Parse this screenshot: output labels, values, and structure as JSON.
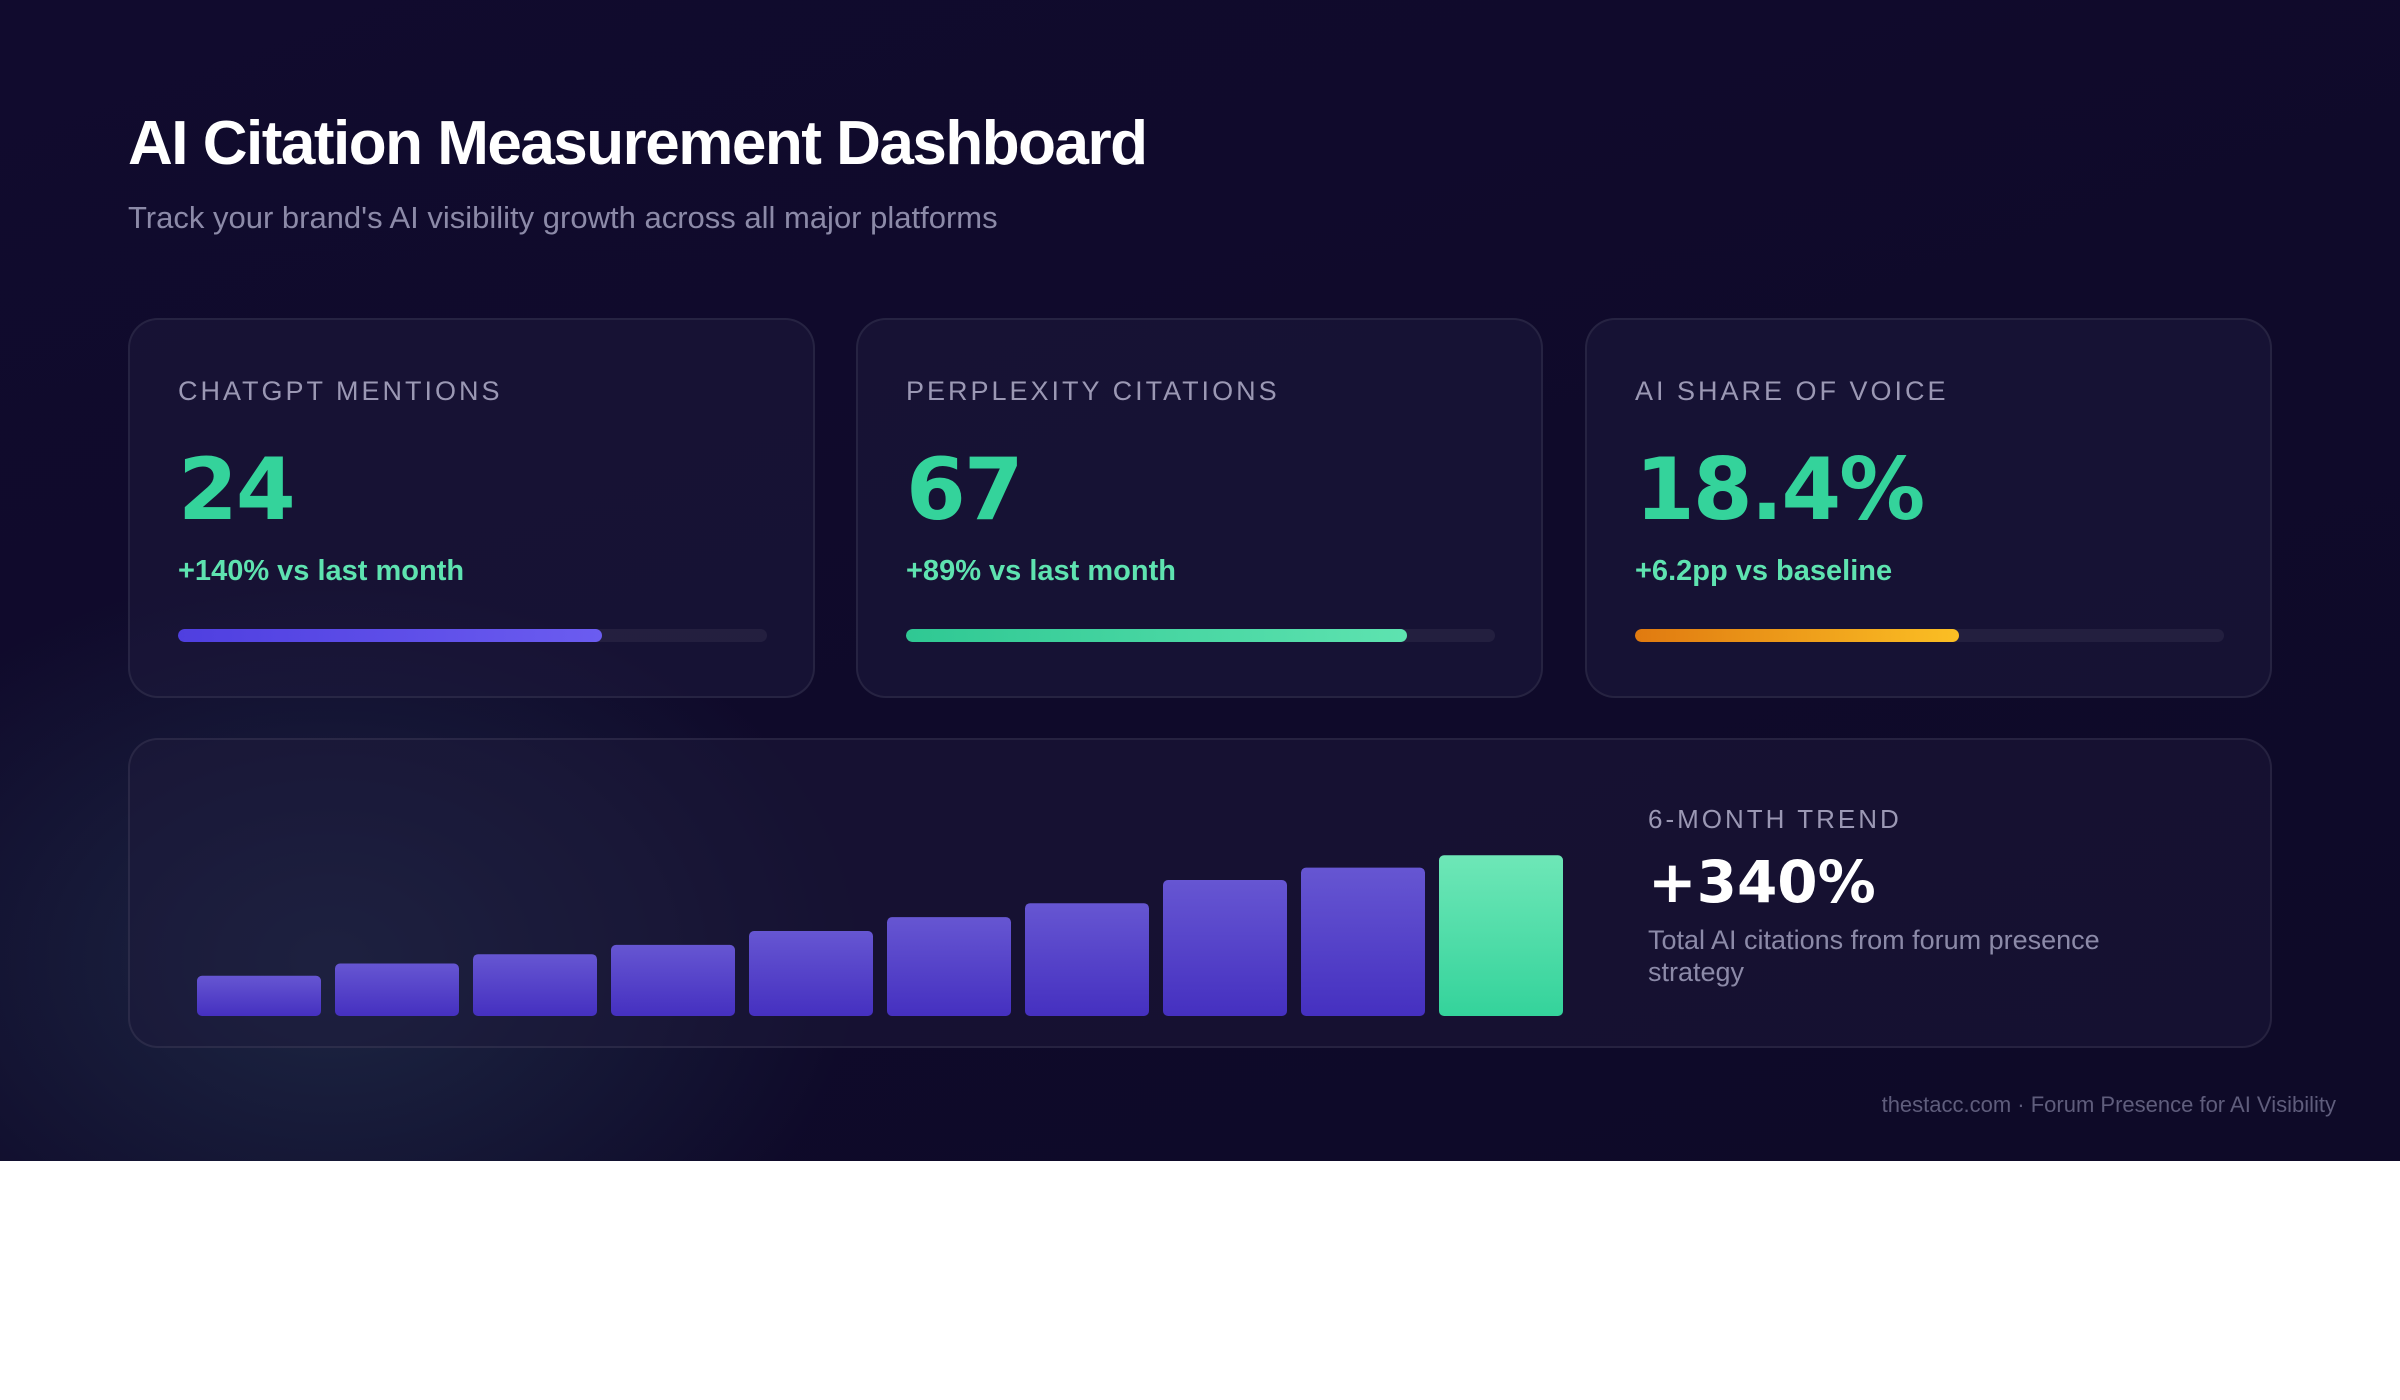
{
  "header": {
    "title": "AI Citation Measurement Dashboard",
    "subtitle": "Track your brand's AI visibility growth across all major platforms"
  },
  "cards": [
    {
      "label": "CHATGPT MENTIONS",
      "value": "24",
      "delta": "+140% vs last month",
      "progress": 0.72,
      "colors": [
        "#4f3fe0",
        "#6b5cf0"
      ]
    },
    {
      "label": "PERPLEXITY CITATIONS",
      "value": "67",
      "delta": "+89% vs last month",
      "progress": 0.85,
      "colors": [
        "#2fc893",
        "#5ee3b0"
      ]
    },
    {
      "label": "AI SHARE OF VOICE",
      "value": "18.4%",
      "delta": "+6.2pp vs baseline",
      "progress": 0.55,
      "colors": [
        "#e07a10",
        "#fbbf24"
      ]
    }
  ],
  "trend": {
    "label": "6-MONTH TREND",
    "value": "+340%",
    "description": "Total AI citations from forum presence strategy"
  },
  "chart_data": {
    "type": "bar",
    "values": [
      26,
      34,
      40,
      46,
      55,
      64,
      73,
      88,
      96,
      104
    ],
    "ylim": [
      0,
      110
    ],
    "colors": {
      "bar_top": "#6656d2",
      "bar_bottom": "#4530c0",
      "highlight_top": "#6ee7b7",
      "highlight_bottom": "#34d39b"
    },
    "highlight_last": true
  },
  "footer": {
    "text": "thestacc.com · Forum Presence for AI Visibility"
  }
}
